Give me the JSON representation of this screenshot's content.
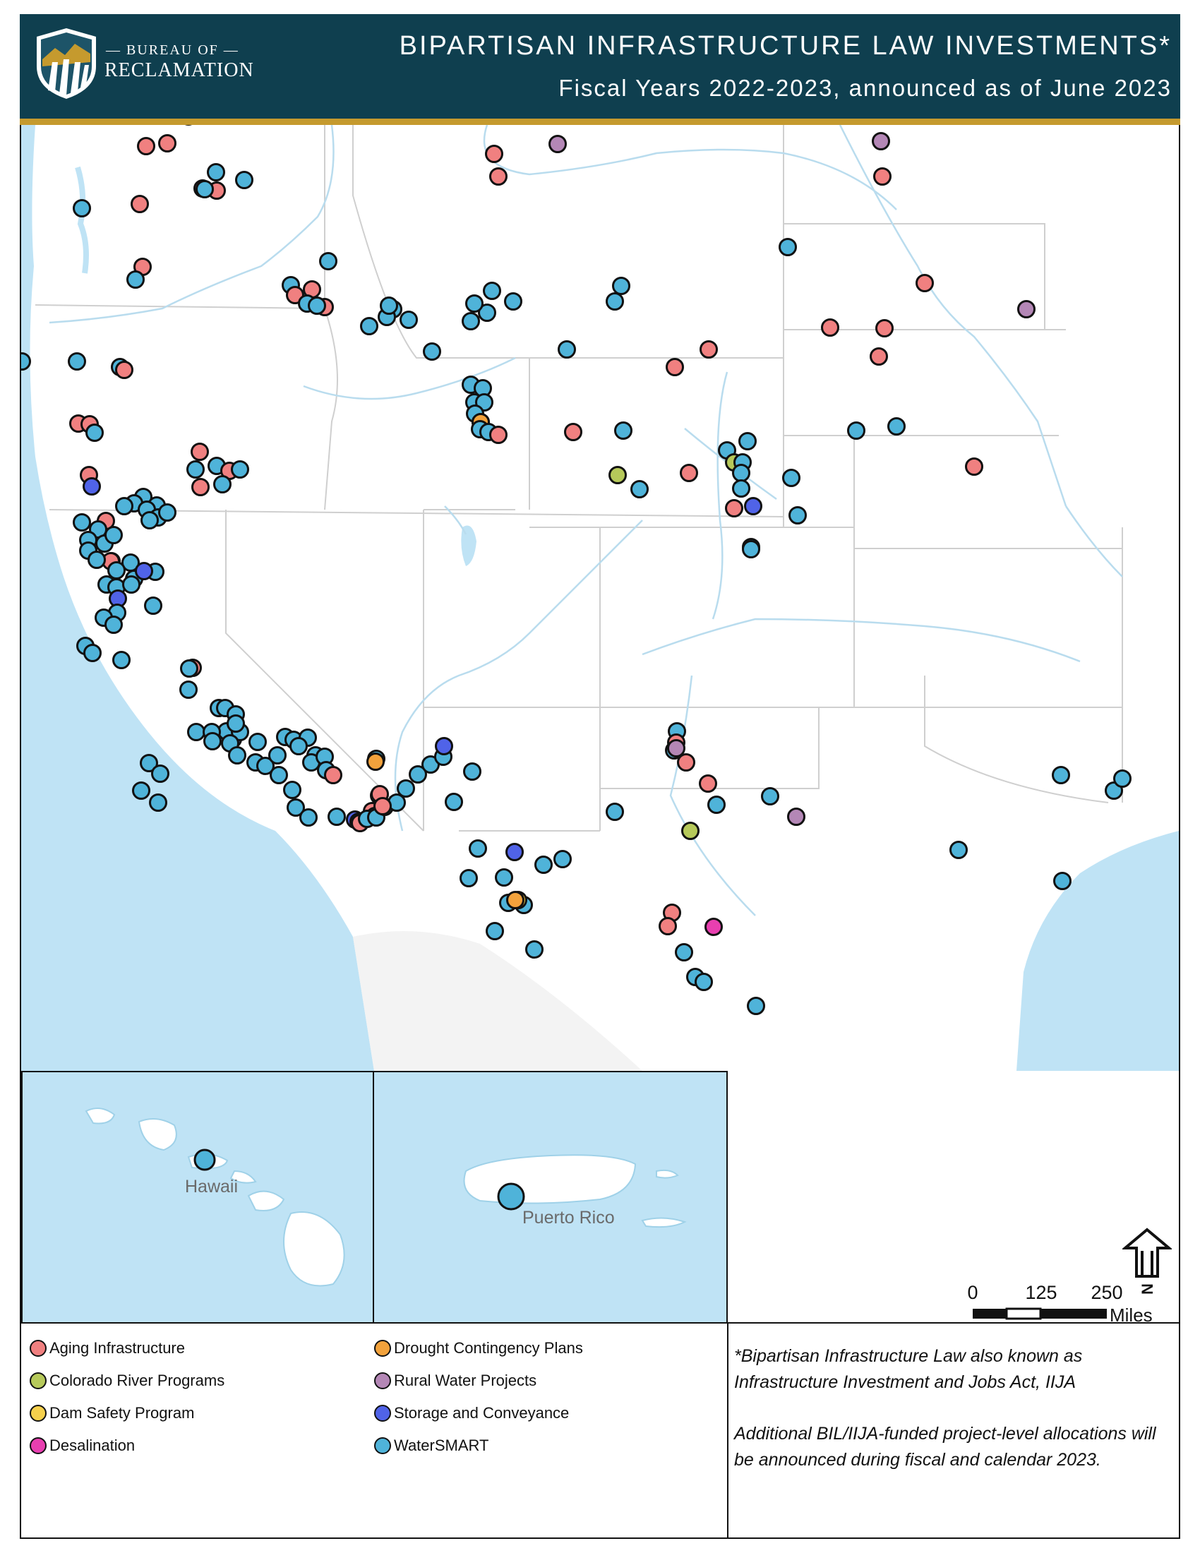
{
  "header": {
    "logo_small": "— BUREAU OF —",
    "logo_big": "RECLAMATION",
    "title": "BIPARTISAN INFRASTRUCTURE LAW INVESTMENTS*",
    "subtitle": "Fiscal Years 2022-2023, announced as of June 2023"
  },
  "colors": {
    "header_bg": "#0f3f4f",
    "header_accent": "#c59a2e",
    "ocean": "#bfe3f5",
    "land": "#ffffff",
    "aging": "#f08080",
    "colorado": "#b6c95a",
    "dam": "#f5d04c",
    "desal": "#e83fb0",
    "drought": "#f2a23c",
    "rural": "#b487b6",
    "storage": "#5063e8",
    "watersmart": "#4fb3d9"
  },
  "legend": {
    "items": [
      {
        "label": "Aging Infrastructure",
        "color": "#f08080"
      },
      {
        "label": "Colorado River Programs",
        "color": "#b6c95a"
      },
      {
        "label": "Dam Safety Program",
        "color": "#f5d04c"
      },
      {
        "label": "Desalination",
        "color": "#e83fb0"
      },
      {
        "label": "Drought Contingency Plans",
        "color": "#f2a23c"
      },
      {
        "label": "Rural Water Projects",
        "color": "#b487b6"
      },
      {
        "label": "Storage and Conveyance",
        "color": "#5063e8"
      },
      {
        "label": "WaterSMART",
        "color": "#4fb3d9"
      }
    ]
  },
  "notes": {
    "line1": "*Bipartisan Infrastructure Law also known as Infrastructure Investment and Jobs Act, IIJA",
    "line2": "Additional BIL/IIJA-funded project-level allocations will be announced during fiscal and calendar 2023."
  },
  "insets": {
    "hawaii_label": "Hawaii",
    "pr_label": "Puerto Rico"
  },
  "scale_bar": {
    "ticks": [
      "0",
      "125",
      "250"
    ],
    "unit": "Miles"
  },
  "north_label": "N"
}
